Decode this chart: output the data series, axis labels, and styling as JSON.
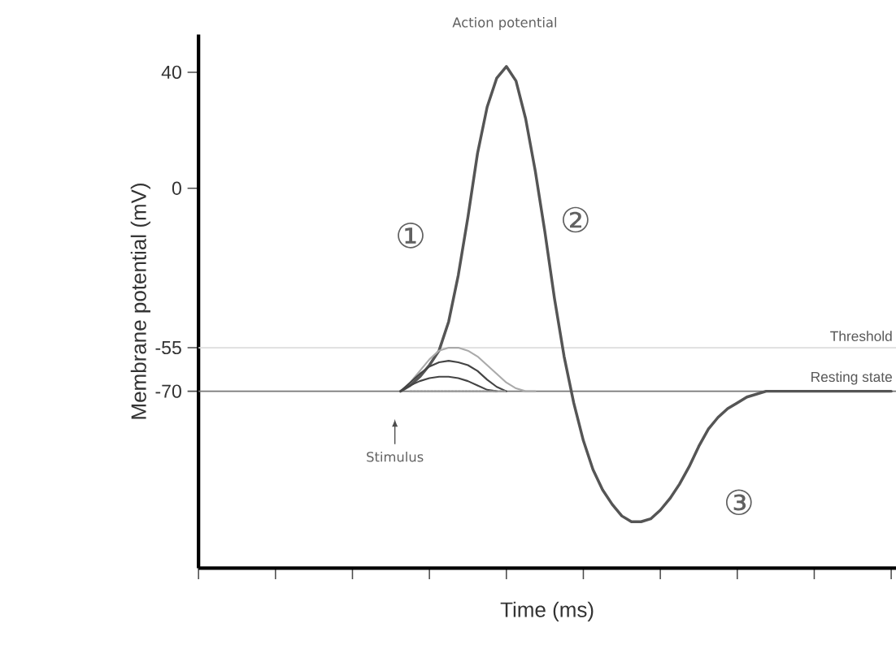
{
  "chart_data": {
    "type": "line",
    "xlabel": "Time (ms)",
    "ylabel": "Membrane potential (mV)",
    "categories": [
      null,
      null,
      null,
      null,
      null,
      null,
      null,
      null,
      null,
      null,
      null,
      null,
      null,
      null,
      null,
      null,
      null,
      null,
      null,
      null,
      null,
      null,
      null,
      null,
      null,
      null,
      null,
      null,
      null,
      null,
      null,
      null,
      null,
      null,
      null,
      null,
      null,
      null,
      null,
      null,
      null,
      null,
      null,
      null,
      null,
      null,
      null,
      null,
      null,
      null,
      null,
      null,
      null,
      null,
      null,
      null,
      null,
      null,
      null,
      null,
      null,
      null,
      null,
      null,
      null,
      null,
      null,
      null,
      null,
      null,
      null,
      null,
      null
    ],
    "ylim": [
      -131,
      53
    ],
    "yticks": [
      -70,
      -55,
      0,
      40
    ],
    "grid": false,
    "marker": "none",
    "series": [
      {
        "color": "#555555",
        "values": [
          null,
          null,
          null,
          null,
          null,
          null,
          null,
          null,
          null,
          null,
          null,
          null,
          null,
          null,
          null,
          null,
          null,
          null,
          null,
          null,
          null,
          -70,
          -68,
          -65,
          -61,
          -56,
          -46,
          -30,
          -10,
          12,
          28,
          38,
          42,
          37,
          24,
          6,
          -15,
          -38,
          -58,
          -74,
          -87,
          -97,
          -104,
          -109,
          -113,
          -115,
          -115,
          -114,
          -111,
          -107,
          -102,
          -96,
          -89,
          -83,
          -79,
          -76,
          -74,
          -72,
          -71,
          -70,
          -70,
          -70,
          -70,
          -70,
          -70,
          -70,
          -70,
          -70,
          -70,
          -70,
          -70,
          -70,
          -70
        ]
      },
      {
        "color": "#aaaaaa",
        "values": [
          null,
          null,
          null,
          null,
          null,
          null,
          null,
          null,
          null,
          null,
          null,
          null,
          null,
          null,
          null,
          null,
          null,
          null,
          null,
          null,
          null,
          -70,
          -67,
          -63,
          -59,
          -56,
          -55,
          -55,
          -56,
          -58,
          -61,
          -64,
          -67,
          -69,
          -70,
          -70,
          null,
          null,
          null,
          null,
          null,
          null,
          null,
          null,
          null,
          null,
          null,
          null,
          null,
          null,
          null,
          null,
          null,
          null,
          null,
          null,
          null,
          null,
          null,
          null,
          null,
          null,
          null,
          null,
          null,
          null,
          null,
          null,
          null,
          null,
          null,
          null,
          null
        ]
      },
      {
        "color": "#444444",
        "values": [
          null,
          null,
          null,
          null,
          null,
          null,
          null,
          null,
          null,
          null,
          null,
          null,
          null,
          null,
          null,
          null,
          null,
          null,
          null,
          null,
          null,
          -70,
          -67,
          -64,
          -61.5,
          -60,
          -59.5,
          -60,
          -61,
          -63,
          -66,
          -68.5,
          -70,
          null,
          null,
          null,
          null,
          null,
          null,
          null,
          null,
          null,
          null,
          null,
          null,
          null,
          null,
          null,
          null,
          null,
          null,
          null,
          null,
          null,
          null,
          null,
          null,
          null,
          null,
          null,
          null,
          null,
          null,
          null,
          null,
          null,
          null,
          null,
          null,
          null,
          null,
          null,
          null
        ]
      },
      {
        "color": "#444444",
        "values": [
          null,
          null,
          null,
          null,
          null,
          null,
          null,
          null,
          null,
          null,
          null,
          null,
          null,
          null,
          null,
          null,
          null,
          null,
          null,
          null,
          null,
          -70,
          -68,
          -66.5,
          -65.5,
          -65,
          -65,
          -65.5,
          -66.5,
          -68,
          -69.5,
          -70,
          null,
          null,
          null,
          null,
          null,
          null,
          null,
          null,
          null,
          null,
          null,
          null,
          null,
          null,
          null,
          null,
          null,
          null,
          null,
          null,
          null,
          null,
          null,
          null,
          null,
          null,
          null,
          null,
          null,
          null,
          null,
          null,
          null,
          null,
          null,
          null,
          null,
          null,
          null,
          null,
          null
        ]
      },
      {
        "color": "#999999",
        "line_style": "dotted",
        "values": [
          null,
          null,
          null,
          null,
          null,
          null,
          null,
          null,
          null,
          null,
          null,
          null,
          null,
          null,
          null,
          null,
          null,
          null,
          null,
          null,
          null,
          null,
          -70,
          -70,
          -70,
          -70,
          -70,
          -70,
          -70,
          -70,
          -70,
          -70,
          -70,
          null,
          null,
          null,
          null,
          null,
          null,
          null,
          null,
          null,
          null,
          null,
          null,
          null,
          null,
          null,
          null,
          null,
          null,
          null,
          null,
          null,
          null,
          null,
          null,
          null,
          null,
          null,
          null,
          null,
          null,
          null,
          null,
          null,
          null,
          null,
          null,
          null,
          null,
          null,
          null
        ]
      }
    ],
    "ref_lines": [
      {
        "axis": "y",
        "value": -55,
        "label": "Threshold",
        "color": "#dddddd"
      },
      {
        "axis": "y",
        "value": -70,
        "label": "Resting state",
        "color": "#777777"
      }
    ],
    "annotations": [
      "Action potential",
      "Stimulus",
      "①",
      "②",
      "③"
    ]
  }
}
